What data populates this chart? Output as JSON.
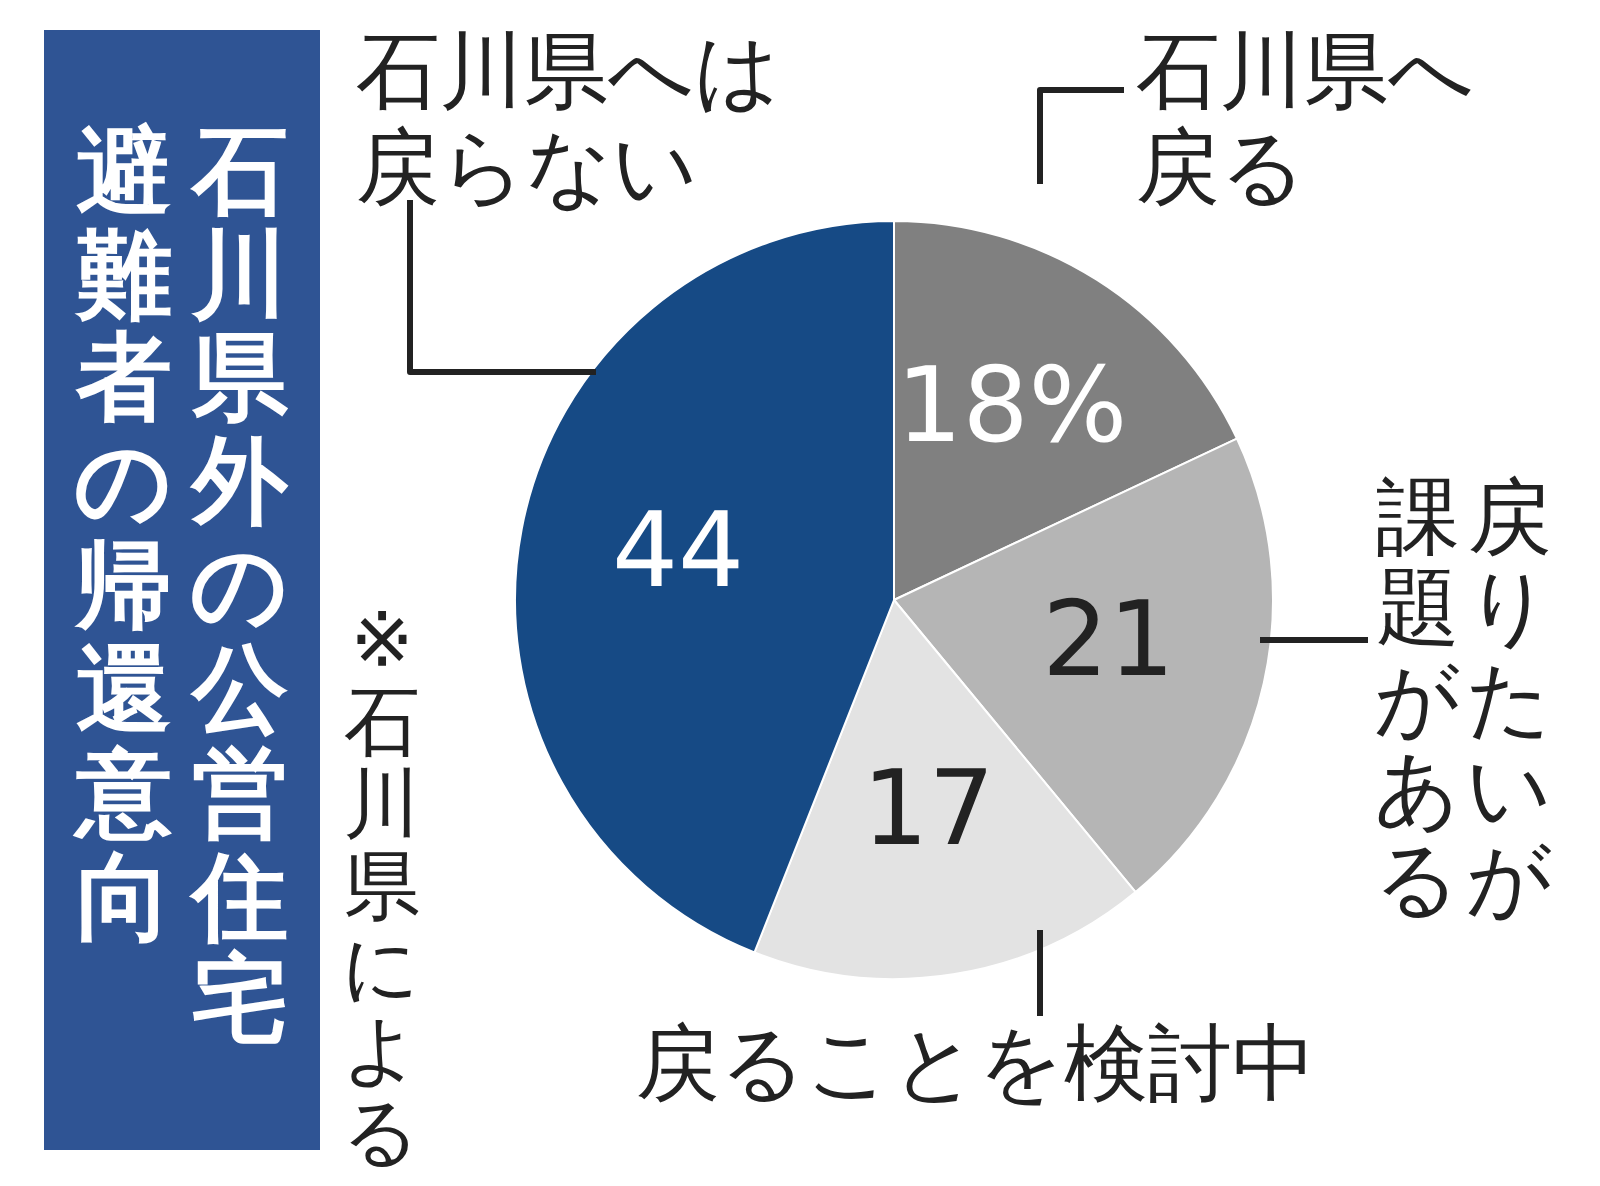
{
  "chart_data": {
    "type": "pie",
    "title": "石川県外の公営住宅避難者の帰還意向",
    "annotations": [
      "※石川県による"
    ],
    "categories": [
      "石川県へ戻る",
      "戻りたいが課題がある",
      "戻ることを検討中",
      "石川県へは戻らない"
    ],
    "values": [
      18,
      21,
      17,
      44
    ],
    "colors": [
      "#808080",
      "#b5b5b5",
      "#e3e3e3",
      "#164a85"
    ],
    "value_labels": [
      "18%",
      "21",
      "17",
      "44"
    ]
  }
}
